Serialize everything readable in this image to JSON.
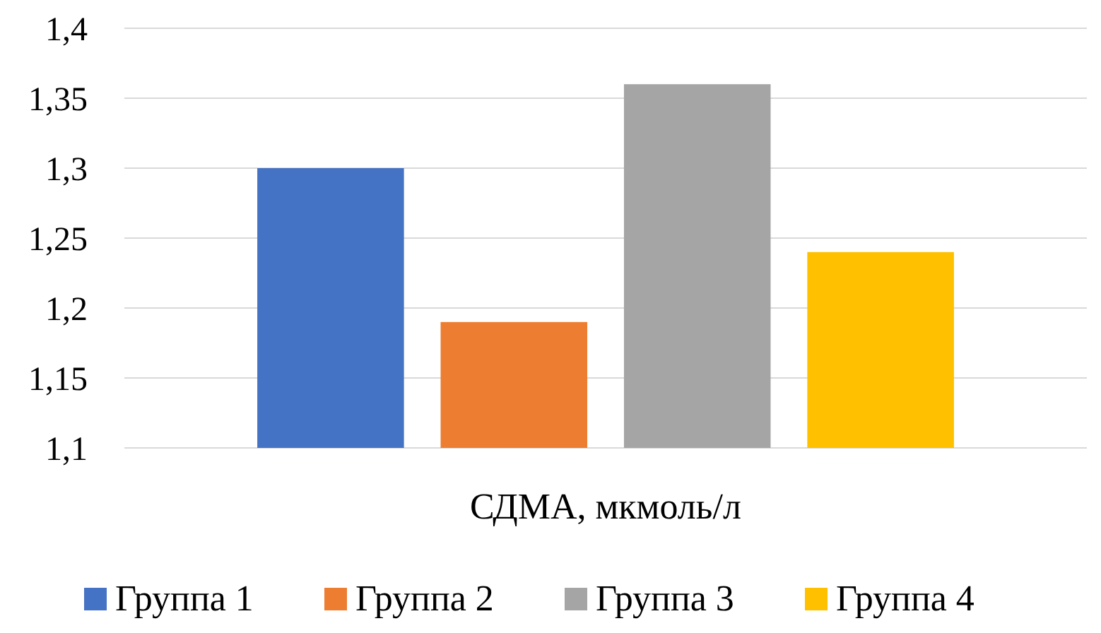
{
  "chart_data": {
    "type": "bar",
    "categories": [
      "СДМА, мкмоль/л"
    ],
    "series": [
      {
        "name": "Группа 1",
        "color": "#4472c4",
        "values": [
          1.3
        ]
      },
      {
        "name": "Группа 2",
        "color": "#ed7d31",
        "values": [
          1.19
        ]
      },
      {
        "name": "Группа 3",
        "color": "#a5a5a5",
        "values": [
          1.36
        ]
      },
      {
        "name": "Группа 4",
        "color": "#ffc000",
        "values": [
          1.24
        ]
      }
    ],
    "ylim": [
      1.1,
      1.4
    ],
    "yticks": [
      {
        "value": 1.1,
        "label": "1,1"
      },
      {
        "value": 1.15,
        "label": "1,15"
      },
      {
        "value": 1.2,
        "label": "1,2"
      },
      {
        "value": 1.25,
        "label": "1,25"
      },
      {
        "value": 1.3,
        "label": "1,3"
      },
      {
        "value": 1.35,
        "label": "1,35"
      },
      {
        "value": 1.4,
        "label": "1,4"
      }
    ],
    "grid": "y",
    "legend": "bottom"
  }
}
